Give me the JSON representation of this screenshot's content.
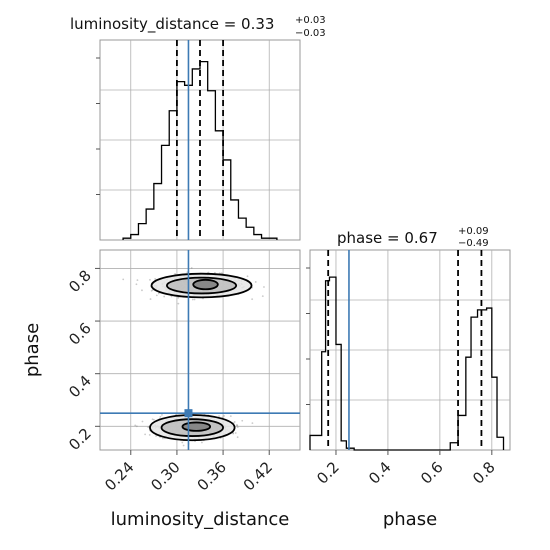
{
  "chart_data": {
    "type": "corner",
    "parameters": [
      "luminosity_distance",
      "phase"
    ],
    "truth": {
      "luminosity_distance": 0.315,
      "phase": 0.25
    },
    "colors": {
      "truth": "#3d7ab4",
      "hist": "#000000",
      "grid": "#b0b0b0"
    },
    "panels": {
      "ld_hist": {
        "title_main": "luminosity_distance = 0.33",
        "title_plus": "+0.03",
        "title_minus": "−0.03",
        "xlim": [
          0.2,
          0.46
        ],
        "ylim": [
          0,
          1
        ],
        "bin_edges": [
          0.23,
          0.24,
          0.25,
          0.26,
          0.27,
          0.28,
          0.29,
          0.3,
          0.31,
          0.32,
          0.33,
          0.34,
          0.35,
          0.36,
          0.37,
          0.38,
          0.39,
          0.4,
          0.41,
          0.42,
          0.43
        ],
        "counts": [
          0.01,
          0.03,
          0.09,
          0.17,
          0.31,
          0.52,
          0.71,
          0.87,
          0.85,
          0.94,
          0.98,
          0.82,
          0.6,
          0.44,
          0.22,
          0.12,
          0.07,
          0.03,
          0.01,
          0.01
        ],
        "quantiles": [
          0.3,
          0.33,
          0.36
        ]
      },
      "phase_hist": {
        "title_main": "phase = 0.67",
        "title_plus": "+0.09",
        "title_minus": "−0.49",
        "xlim": [
          0.1,
          0.87
        ],
        "ylim": [
          0,
          1
        ],
        "bin_edges": [
          0.1,
          0.145,
          0.16,
          0.175,
          0.2,
          0.22,
          0.24,
          0.27,
          0.64,
          0.67,
          0.7,
          0.72,
          0.745,
          0.78,
          0.8,
          0.82,
          0.845
        ],
        "counts": [
          0.08,
          0.54,
          0.93,
          0.95,
          0.58,
          0.05,
          0.01,
          0.0,
          0.04,
          0.19,
          0.51,
          0.73,
          0.77,
          0.78,
          0.4,
          0.07
        ],
        "quantiles": [
          0.17,
          0.67,
          0.76
        ],
        "xticks": [
          "0.2",
          "0.4",
          "0.6",
          "0.8"
        ],
        "xtick_values": [
          0.2,
          0.4,
          0.6,
          0.8
        ],
        "xlabel": "phase"
      },
      "joint": {
        "xlim": [
          0.2,
          0.46
        ],
        "ylim": [
          0.11,
          0.87
        ],
        "xticks": [
          "0.24",
          "0.30",
          "0.36",
          "0.42"
        ],
        "xtick_values": [
          0.24,
          0.3,
          0.36,
          0.42
        ],
        "yticks": [
          "0.2",
          "0.4",
          "0.6",
          "0.8"
        ],
        "ytick_values": [
          0.2,
          0.4,
          0.6,
          0.8
        ],
        "xlabel": "luminosity_distance",
        "ylabel": "phase",
        "modes": [
          {
            "cx": 0.332,
            "cy": 0.735,
            "rx_levels": [
              0.065,
              0.045,
              0.016
            ],
            "ry_levels": [
              0.045,
              0.03,
              0.018
            ]
          },
          {
            "cx": 0.32,
            "cy": 0.195,
            "rx_levels": [
              0.055,
              0.04,
              0.018
            ],
            "ry_levels": [
              0.048,
              0.032,
              0.016
            ]
          }
        ]
      }
    }
  }
}
